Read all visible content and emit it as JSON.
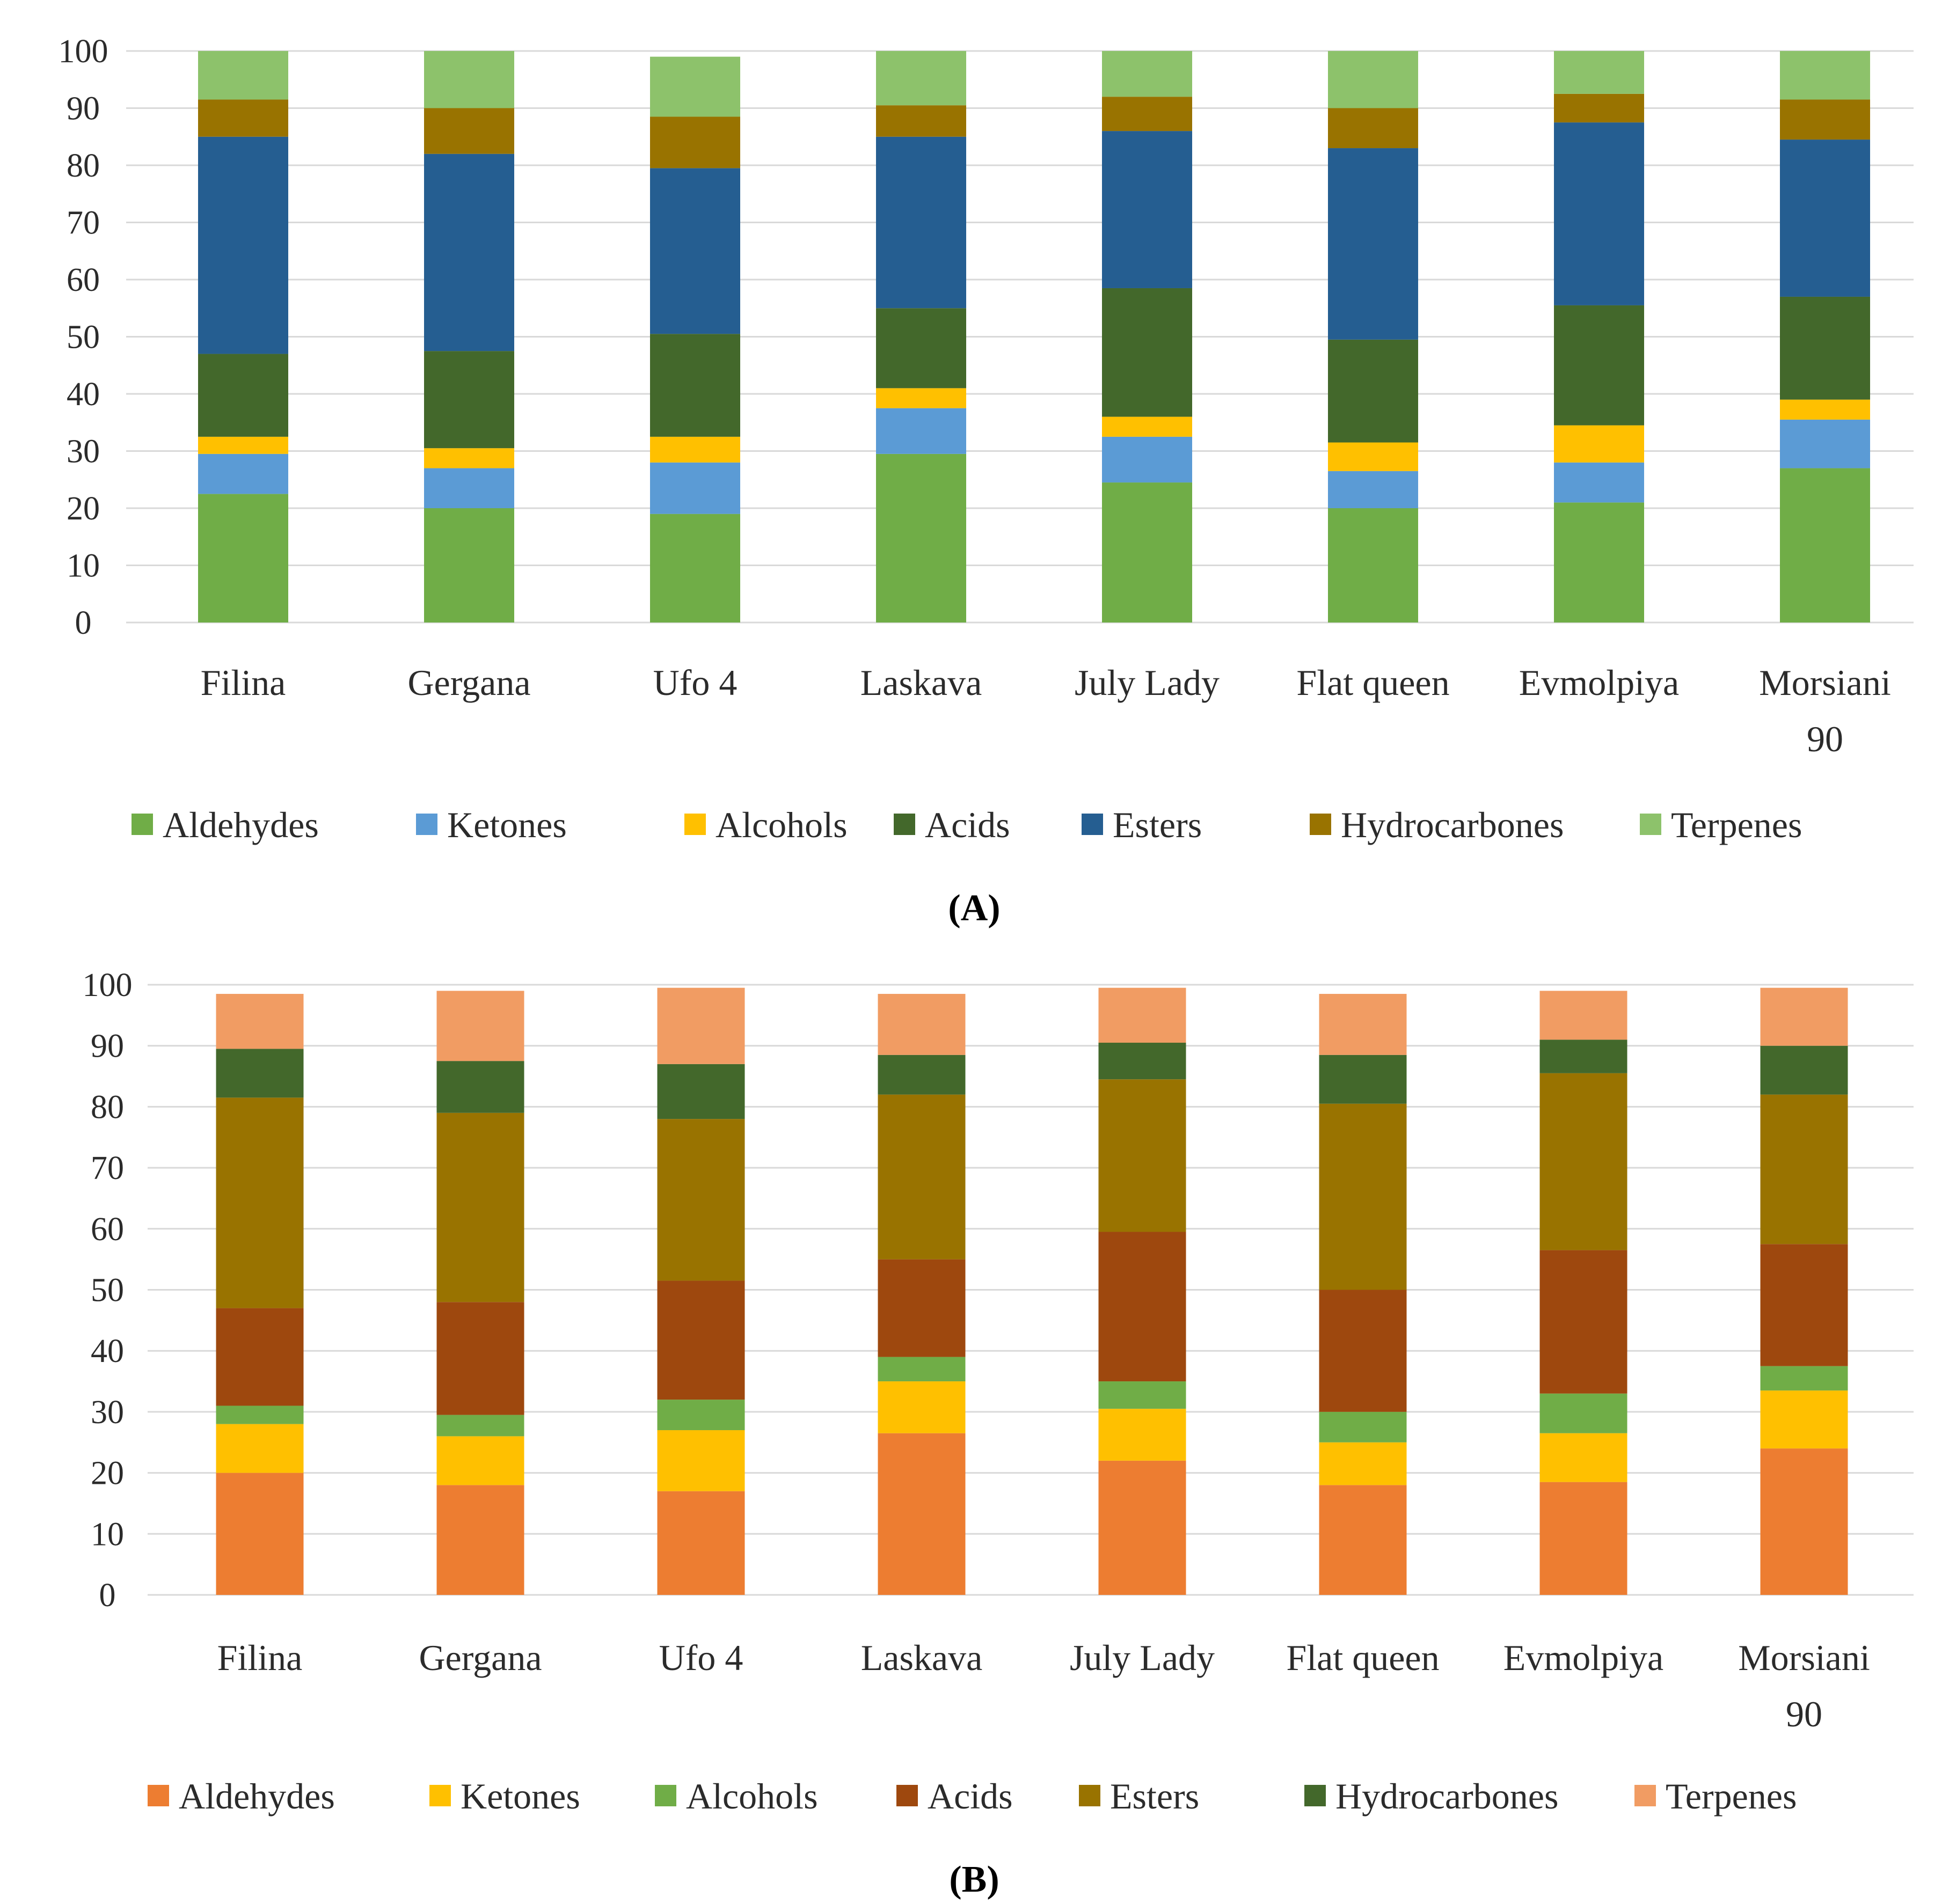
{
  "chart_data": [
    {
      "type": "bar",
      "stacked": true,
      "panel_label": "(A)",
      "categories": [
        "Filina",
        "Gergana",
        "Ufo 4",
        "Laskava",
        "July Lady",
        "Flat queen",
        "Evmolpiya",
        "Morsiani 90"
      ],
      "category_lines": [
        [
          "Filina"
        ],
        [
          "Gergana"
        ],
        [
          "Ufo 4"
        ],
        [
          "Laskava"
        ],
        [
          "July Lady"
        ],
        [
          "Flat queen"
        ],
        [
          "Evmolpiya"
        ],
        [
          "Morsiani",
          "90"
        ]
      ],
      "ylim": [
        0,
        100
      ],
      "yticks": [
        "0",
        "10",
        "20",
        "30",
        "40",
        "50",
        "60",
        "70",
        "80",
        "90",
        "100"
      ],
      "grid": true,
      "legend_position": "bottom",
      "series": [
        {
          "name": "Aldehydes",
          "color": "#70ad47",
          "values": [
            22.5,
            20.0,
            19.0,
            29.5,
            24.5,
            20.0,
            21.0,
            27.0
          ]
        },
        {
          "name": "Ketones",
          "color": "#5b9bd5",
          "values": [
            7.0,
            7.0,
            9.0,
            8.0,
            8.0,
            6.5,
            7.0,
            8.5
          ]
        },
        {
          "name": "Alcohols",
          "color": "#ffc000",
          "values": [
            3.0,
            3.5,
            4.5,
            3.5,
            3.5,
            5.0,
            6.5,
            3.5
          ]
        },
        {
          "name": "Acids",
          "color": "#43682b",
          "values": [
            14.5,
            17.0,
            18.0,
            14.0,
            22.5,
            18.0,
            21.0,
            18.0
          ]
        },
        {
          "name": "Esters",
          "color": "#255e91",
          "values": [
            38.0,
            34.5,
            29.0,
            30.0,
            27.5,
            33.5,
            32.0,
            27.5
          ]
        },
        {
          "name": "Hydrocarbones",
          "color": "#997300",
          "values": [
            6.5,
            8.0,
            9.0,
            5.5,
            6.0,
            7.0,
            5.0,
            7.0
          ]
        },
        {
          "name": "Terpenes",
          "color": "#8dc26b",
          "values": [
            8.5,
            10.0,
            10.5,
            9.5,
            8.0,
            10.0,
            7.5,
            8.5
          ]
        }
      ]
    },
    {
      "type": "bar",
      "stacked": true,
      "panel_label": "(B)",
      "categories": [
        "Filina",
        "Gergana",
        "Ufo 4",
        "Laskava",
        "July Lady",
        "Flat queen",
        "Evmolpiya",
        "Morsiani 90"
      ],
      "category_lines": [
        [
          "Filina"
        ],
        [
          "Gergana"
        ],
        [
          "Ufo 4"
        ],
        [
          "Laskava"
        ],
        [
          "July Lady"
        ],
        [
          "Flat queen"
        ],
        [
          "Evmolpiya"
        ],
        [
          "Morsiani",
          "90"
        ]
      ],
      "ylim": [
        0,
        100
      ],
      "yticks": [
        "0",
        "10",
        "20",
        "30",
        "40",
        "50",
        "60",
        "70",
        "80",
        "90",
        "100"
      ],
      "grid": true,
      "legend_position": "bottom",
      "series": [
        {
          "name": "Aldehydes",
          "color": "#ed7d31",
          "values": [
            20.0,
            18.0,
            17.0,
            26.5,
            22.0,
            18.0,
            18.5,
            24.0
          ]
        },
        {
          "name": "Ketones",
          "color": "#ffc000",
          "values": [
            8.0,
            8.0,
            10.0,
            8.5,
            8.5,
            7.0,
            8.0,
            9.5
          ]
        },
        {
          "name": "Alcohols",
          "color": "#70ad47",
          "values": [
            3.0,
            3.5,
            5.0,
            4.0,
            4.5,
            5.0,
            6.5,
            4.0
          ]
        },
        {
          "name": "Acids",
          "color": "#9e480e",
          "values": [
            16.0,
            18.5,
            19.5,
            16.0,
            24.5,
            20.0,
            23.5,
            20.0
          ]
        },
        {
          "name": "Esters",
          "color": "#997300",
          "values": [
            34.5,
            31.0,
            26.5,
            27.0,
            25.0,
            30.5,
            29.0,
            24.5
          ]
        },
        {
          "name": "Hydrocarbones",
          "color": "#43682b",
          "values": [
            8.0,
            8.5,
            9.0,
            6.5,
            6.0,
            8.0,
            5.5,
            8.0
          ]
        },
        {
          "name": "Terpenes",
          "color": "#f19c63",
          "values": [
            9.0,
            11.5,
            12.5,
            10.0,
            9.0,
            10.0,
            8.0,
            9.5
          ]
        }
      ]
    }
  ]
}
